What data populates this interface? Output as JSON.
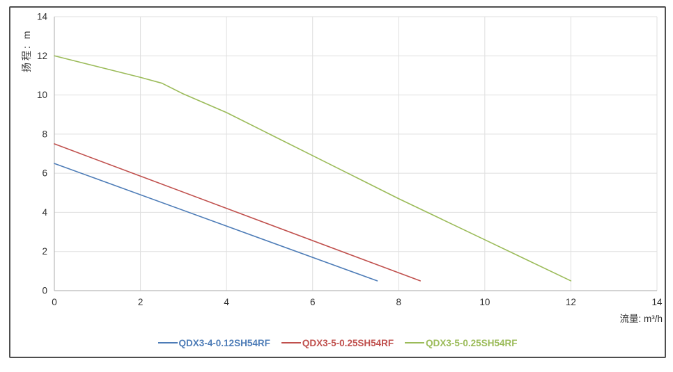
{
  "chart_data": {
    "type": "line",
    "title": "",
    "xlabel": "流量: m³/h",
    "ylabel": "扬程: m",
    "xlim": [
      0,
      14
    ],
    "ylim": [
      0,
      14
    ],
    "x_ticks": [
      0,
      2,
      4,
      6,
      8,
      10,
      12,
      14
    ],
    "y_ticks": [
      0,
      2,
      4,
      6,
      8,
      10,
      12,
      14
    ],
    "grid": true,
    "legend_position": "bottom-center",
    "series": [
      {
        "name": "QDX3-4-0.12SH54RF",
        "color": "#4d7cb7",
        "points": [
          [
            0,
            6.5
          ],
          [
            7.5,
            0.5
          ]
        ]
      },
      {
        "name": "QDX3-5-0.25SH54RF",
        "color": "#c0504d",
        "points": [
          [
            0,
            7.5
          ],
          [
            8.5,
            0.5
          ]
        ]
      },
      {
        "name": "QDX3-5-0.25SH54RF",
        "color": "#9bbb59",
        "points": [
          [
            0,
            12
          ],
          [
            1,
            11.45
          ],
          [
            2,
            10.9
          ],
          [
            2.5,
            10.6
          ],
          [
            3,
            10.05
          ],
          [
            4,
            9.1
          ],
          [
            5,
            8.0
          ],
          [
            6,
            6.9
          ],
          [
            7,
            5.8
          ],
          [
            8,
            4.7
          ],
          [
            9,
            3.65
          ],
          [
            10,
            2.6
          ],
          [
            11,
            1.55
          ],
          [
            12,
            0.5
          ]
        ]
      }
    ]
  },
  "styles": {
    "frame_border": "#4e4e4e",
    "grid_color": "#dfdfdf",
    "spine_color": "#b9b9b9",
    "tick_text_color": "#2f2f2f",
    "axis_title_color": "#2f2f2f"
  }
}
